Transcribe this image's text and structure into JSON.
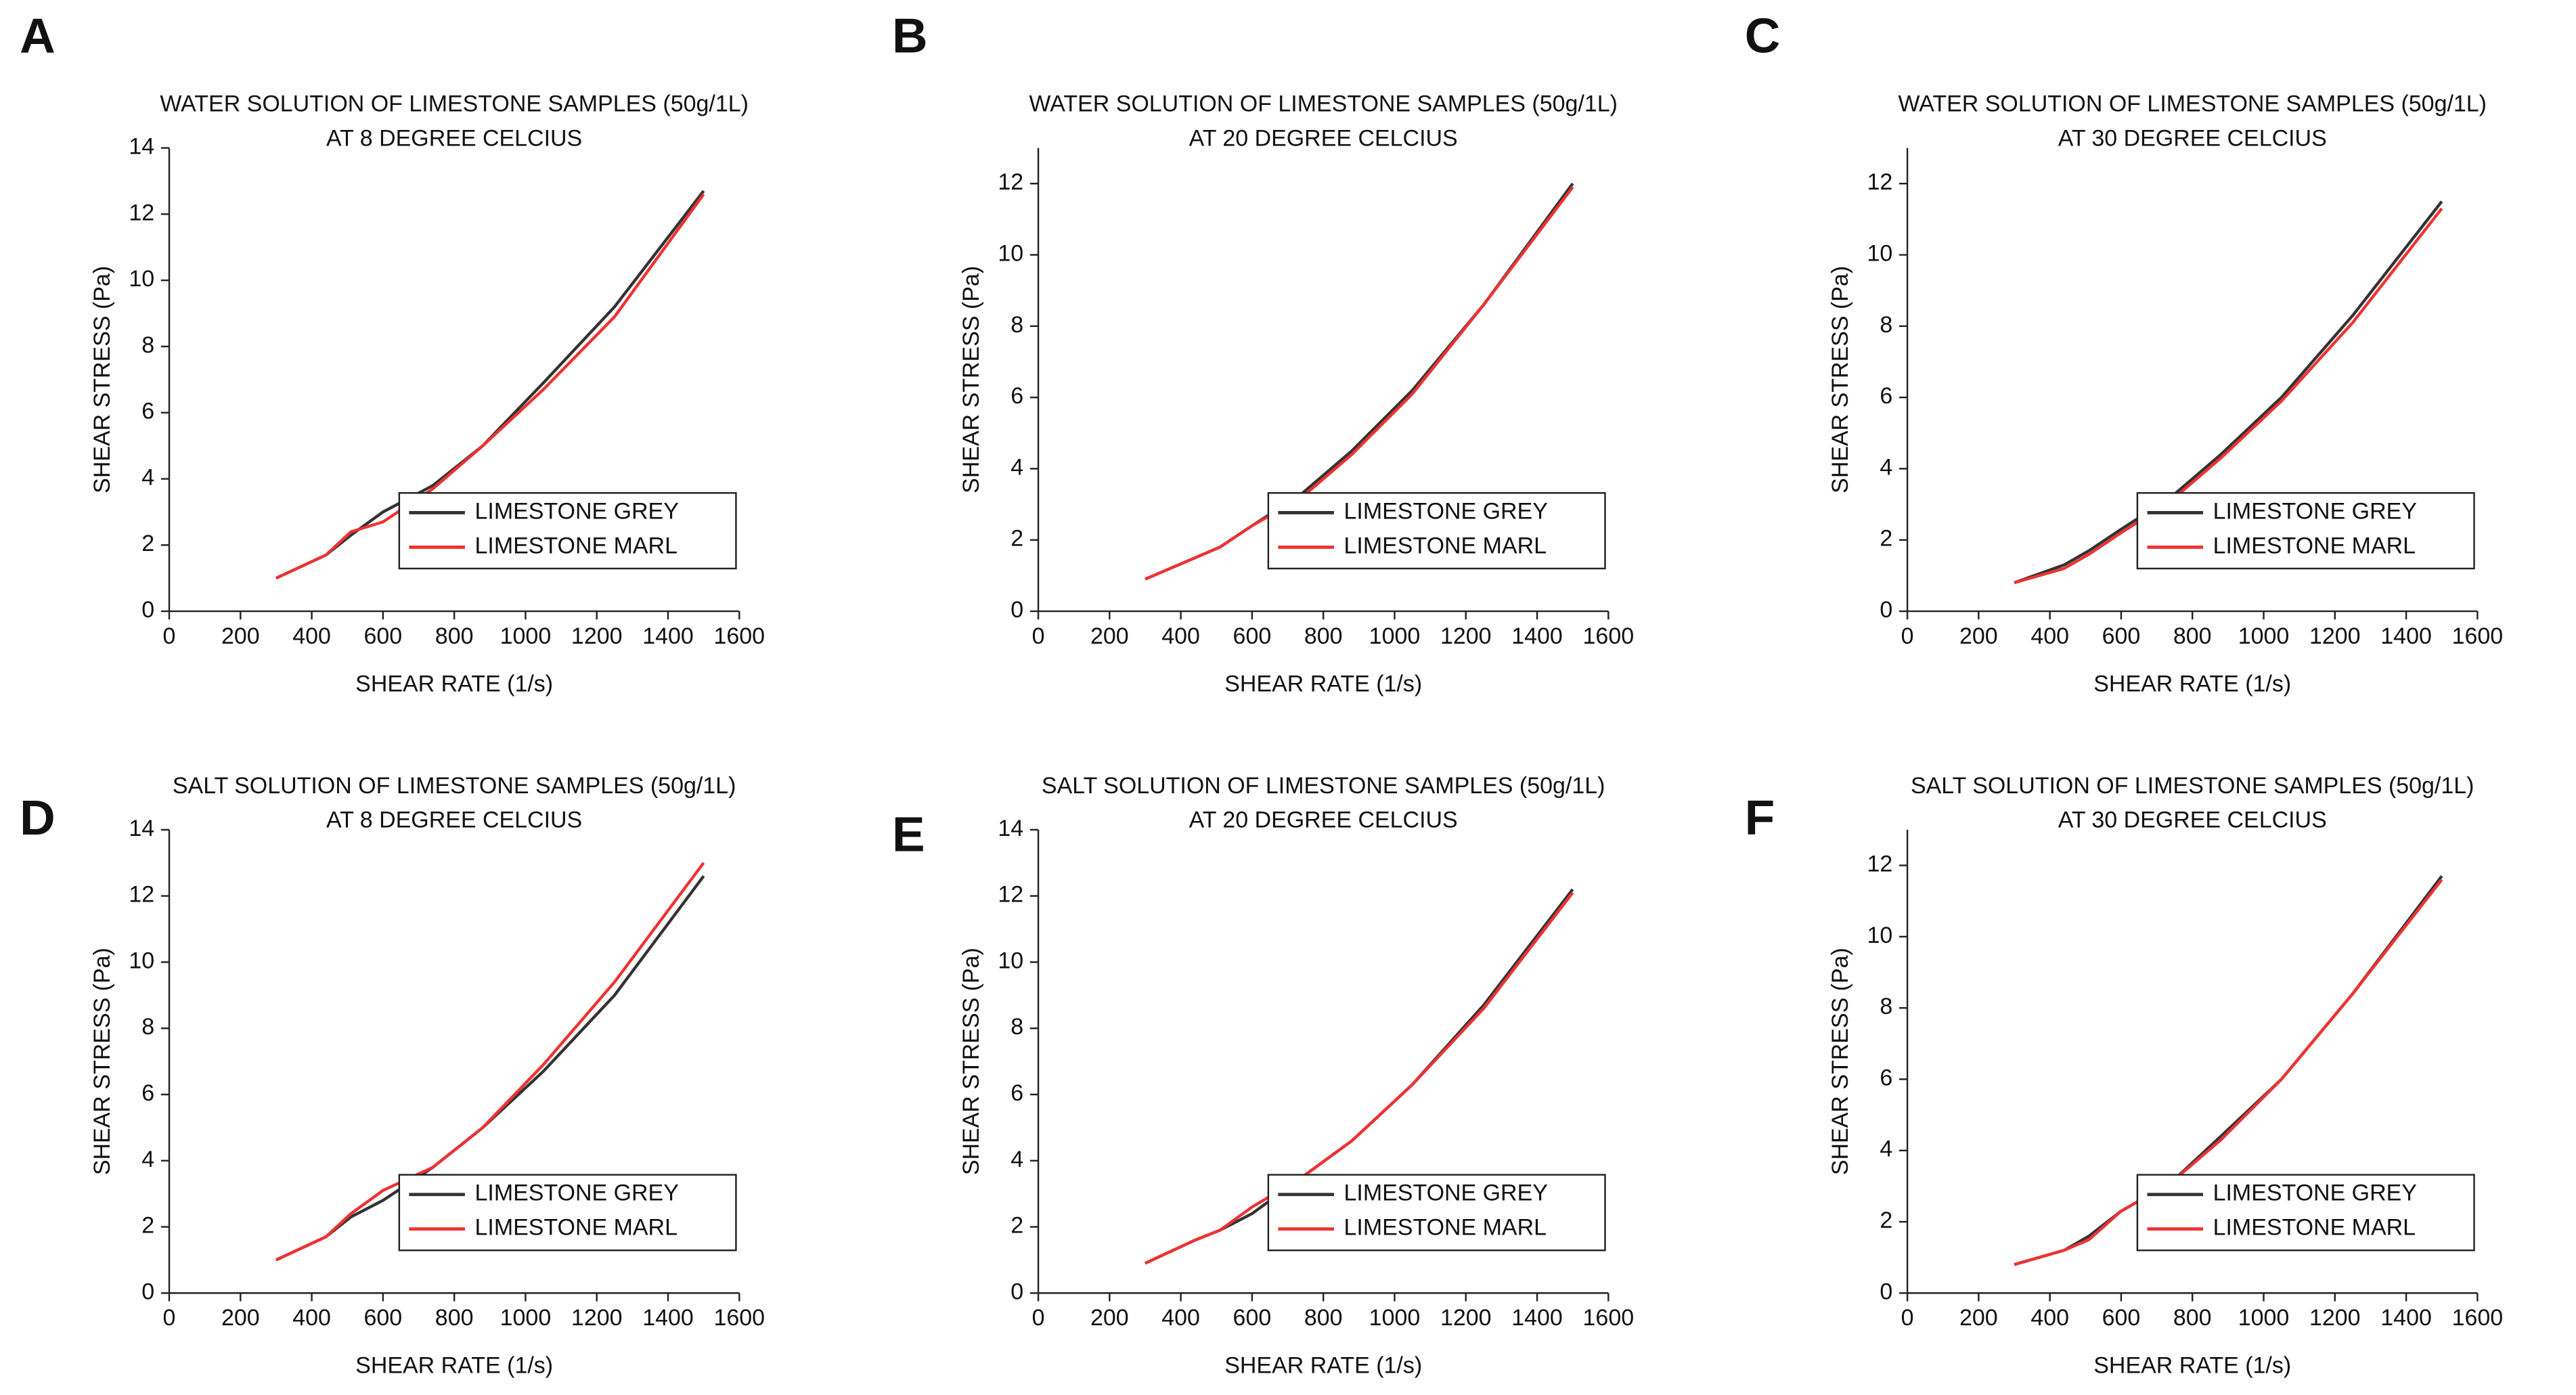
{
  "chart_data": [
    {
      "type": "line",
      "panel": "A",
      "title": "WATER SOLUTION OF  LIMESTONE SAMPLES (50g/1L)",
      "subtitle": "AT 8 DEGREE CELCIUS",
      "x_label": "SHEAR RATE (1/s)",
      "y_label": "SHEAR STRESS (Pa)",
      "x": [
        300,
        440,
        510,
        600,
        740,
        880,
        1050,
        1250,
        1500
      ],
      "series": [
        {
          "name": "LIMESTONE GREY",
          "color": "#333333",
          "values": [
            1.0,
            1.7,
            2.3,
            3.0,
            3.8,
            5.0,
            6.9,
            9.2,
            12.7
          ]
        },
        {
          "name": "LIMESTONE MARL",
          "color": "#ee3333",
          "values": [
            1.0,
            1.7,
            2.4,
            2.7,
            3.7,
            5.0,
            6.7,
            8.9,
            12.6
          ]
        }
      ],
      "xlim": [
        0,
        1600
      ],
      "xticks": [
        0,
        200,
        400,
        600,
        800,
        1000,
        1200,
        1400,
        1600
      ],
      "ylim": [
        0,
        14
      ],
      "yticks": [
        0,
        2,
        4,
        6,
        8,
        10,
        12,
        14
      ],
      "grid": false,
      "legend": "lower-right"
    },
    {
      "type": "line",
      "panel": "B",
      "title": "WATER SOLUTION OF  LIMESTONE SAMPLES (50g/1L)",
      "subtitle": "AT 20 DEGREE CELCIUS",
      "x_label": "SHEAR RATE (1/s)",
      "y_label": "SHEAR STRESS (Pa)",
      "x": [
        300,
        440,
        510,
        600,
        740,
        880,
        1050,
        1250,
        1500
      ],
      "series": [
        {
          "name": "LIMESTONE GREY",
          "color": "#333333",
          "values": [
            0.9,
            1.5,
            1.8,
            2.4,
            3.3,
            4.5,
            6.2,
            8.6,
            12.0
          ]
        },
        {
          "name": "LIMESTONE MARL",
          "color": "#ee3333",
          "values": [
            0.9,
            1.5,
            1.8,
            2.4,
            3.2,
            4.4,
            6.1,
            8.6,
            11.9
          ]
        }
      ],
      "xlim": [
        0,
        1600
      ],
      "xticks": [
        0,
        200,
        400,
        600,
        800,
        1000,
        1200,
        1400,
        1600
      ],
      "ylim": [
        0,
        13
      ],
      "yticks": [
        0,
        2,
        4,
        6,
        8,
        10,
        12
      ],
      "grid": false,
      "legend": "lower-right"
    },
    {
      "type": "line",
      "panel": "C",
      "title": "WATER SOLUTION OF  LIMESTONE SAMPLES (50g/1L)",
      "subtitle": "AT 30 DEGREE CELCIUS",
      "x_label": "SHEAR RATE (1/s)",
      "y_label": "SHEAR STRESS (Pa)",
      "x": [
        300,
        440,
        510,
        600,
        740,
        880,
        1050,
        1250,
        1500
      ],
      "series": [
        {
          "name": "LIMESTONE GREY",
          "color": "#333333",
          "values": [
            0.8,
            1.3,
            1.7,
            2.3,
            3.2,
            4.4,
            6.0,
            8.3,
            11.5
          ]
        },
        {
          "name": "LIMESTONE MARL",
          "color": "#ee3333",
          "values": [
            0.8,
            1.2,
            1.6,
            2.2,
            3.1,
            4.3,
            5.9,
            8.1,
            11.3
          ]
        }
      ],
      "xlim": [
        0,
        1600
      ],
      "xticks": [
        0,
        200,
        400,
        600,
        800,
        1000,
        1200,
        1400,
        1600
      ],
      "ylim": [
        0,
        13
      ],
      "yticks": [
        0,
        2,
        4,
        6,
        8,
        10,
        12
      ],
      "grid": false,
      "legend": "lower-right"
    },
    {
      "type": "line",
      "panel": "D",
      "title": "SALT SOLUTION OF  LIMESTONE SAMPLES (50g/1L)",
      "subtitle": "AT 8 DEGREE CELCIUS",
      "x_label": "SHEAR RATE (1/s)",
      "y_label": "SHEAR STRESS (Pa)",
      "x": [
        300,
        440,
        510,
        600,
        740,
        880,
        1050,
        1250,
        1500
      ],
      "series": [
        {
          "name": "LIMESTONE GREY",
          "color": "#333333",
          "values": [
            1.0,
            1.7,
            2.3,
            2.8,
            3.8,
            5.0,
            6.7,
            9.0,
            12.6
          ]
        },
        {
          "name": "LIMESTONE MARL",
          "color": "#ee3333",
          "values": [
            1.0,
            1.7,
            2.4,
            3.1,
            3.8,
            5.0,
            6.9,
            9.4,
            13.0
          ]
        }
      ],
      "xlim": [
        0,
        1600
      ],
      "xticks": [
        0,
        200,
        400,
        600,
        800,
        1000,
        1200,
        1400,
        1600
      ],
      "ylim": [
        0,
        14
      ],
      "yticks": [
        0,
        2,
        4,
        6,
        8,
        10,
        12,
        14
      ],
      "grid": false,
      "legend": "lower-right"
    },
    {
      "type": "line",
      "panel": "E",
      "title": "SALT SOLUTION OF  LIMESTONE SAMPLES (50g/1L)",
      "subtitle": "AT 20 DEGREE CELCIUS",
      "x_label": "SHEAR RATE (1/s)",
      "y_label": "SHEAR STRESS (Pa)",
      "x": [
        300,
        440,
        510,
        600,
        740,
        880,
        1050,
        1250,
        1500
      ],
      "series": [
        {
          "name": "LIMESTONE GREY",
          "color": "#333333",
          "values": [
            0.9,
            1.6,
            1.9,
            2.4,
            3.5,
            4.6,
            6.3,
            8.7,
            12.2
          ]
        },
        {
          "name": "LIMESTONE MARL",
          "color": "#ee3333",
          "values": [
            0.9,
            1.6,
            1.9,
            2.6,
            3.5,
            4.6,
            6.3,
            8.6,
            12.1
          ]
        }
      ],
      "xlim": [
        0,
        1600
      ],
      "xticks": [
        0,
        200,
        400,
        600,
        800,
        1000,
        1200,
        1400,
        1600
      ],
      "ylim": [
        0,
        14
      ],
      "yticks": [
        0,
        2,
        4,
        6,
        8,
        10,
        12,
        14
      ],
      "grid": false,
      "legend": "lower-right"
    },
    {
      "type": "line",
      "panel": "F",
      "title": "SALT SOLUTION OF  LIMESTONE SAMPLES (50g/1L)",
      "subtitle": "AT 30 DEGREE CELCIUS",
      "x_label": "SHEAR RATE (1/s)",
      "y_label": "SHEAR STRESS (Pa)",
      "x": [
        300,
        440,
        510,
        600,
        740,
        880,
        1050,
        1250,
        1500
      ],
      "series": [
        {
          "name": "LIMESTONE GREY",
          "color": "#333333",
          "values": [
            0.8,
            1.2,
            1.6,
            2.3,
            3.1,
            4.4,
            6.0,
            8.4,
            11.7
          ]
        },
        {
          "name": "LIMESTONE MARL",
          "color": "#ee3333",
          "values": [
            0.8,
            1.2,
            1.5,
            2.3,
            3.1,
            4.3,
            6.0,
            8.4,
            11.6
          ]
        }
      ],
      "xlim": [
        0,
        1600
      ],
      "xticks": [
        0,
        200,
        400,
        600,
        800,
        1000,
        1200,
        1400,
        1600
      ],
      "ylim": [
        0,
        13
      ],
      "yticks": [
        0,
        2,
        4,
        6,
        8,
        10,
        12
      ],
      "grid": false,
      "legend": "lower-right"
    }
  ]
}
